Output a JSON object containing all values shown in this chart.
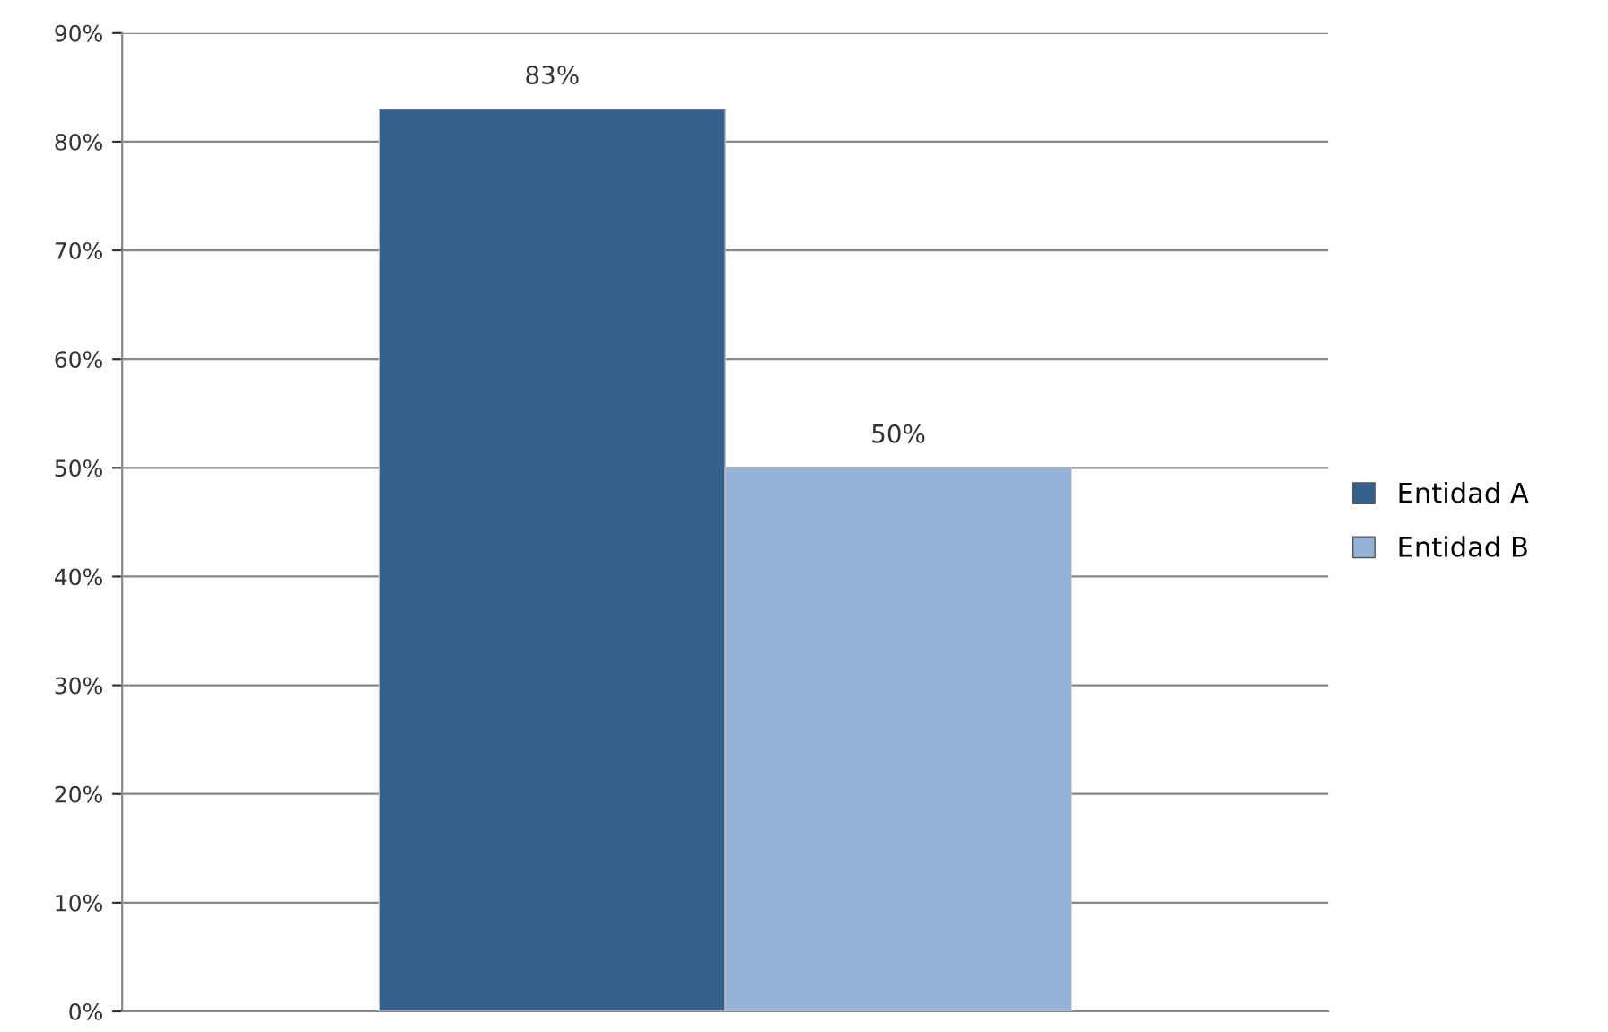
{
  "chart_data": {
    "type": "bar",
    "categories": [
      null
    ],
    "series": [
      {
        "name": "Entidad A",
        "color": "#355f8d",
        "values": [
          83
        ],
        "value_labels": [
          "83%"
        ]
      },
      {
        "name": "Entidad B",
        "color": "#95b3d7",
        "values": [
          50
        ],
        "value_labels": [
          "50%"
        ]
      }
    ],
    "ylim": [
      0,
      90
    ],
    "yticks": [
      {
        "value": 0,
        "label": "0%"
      },
      {
        "value": 10,
        "label": "10%"
      },
      {
        "value": 20,
        "label": "20%"
      },
      {
        "value": 30,
        "label": "30%"
      },
      {
        "value": 40,
        "label": "40%"
      },
      {
        "value": 50,
        "label": "50%"
      },
      {
        "value": 60,
        "label": "60%"
      },
      {
        "value": 70,
        "label": "70%"
      },
      {
        "value": 80,
        "label": "80%"
      },
      {
        "value": 90,
        "label": "90%"
      }
    ],
    "grid": "y",
    "legend": "right"
  }
}
